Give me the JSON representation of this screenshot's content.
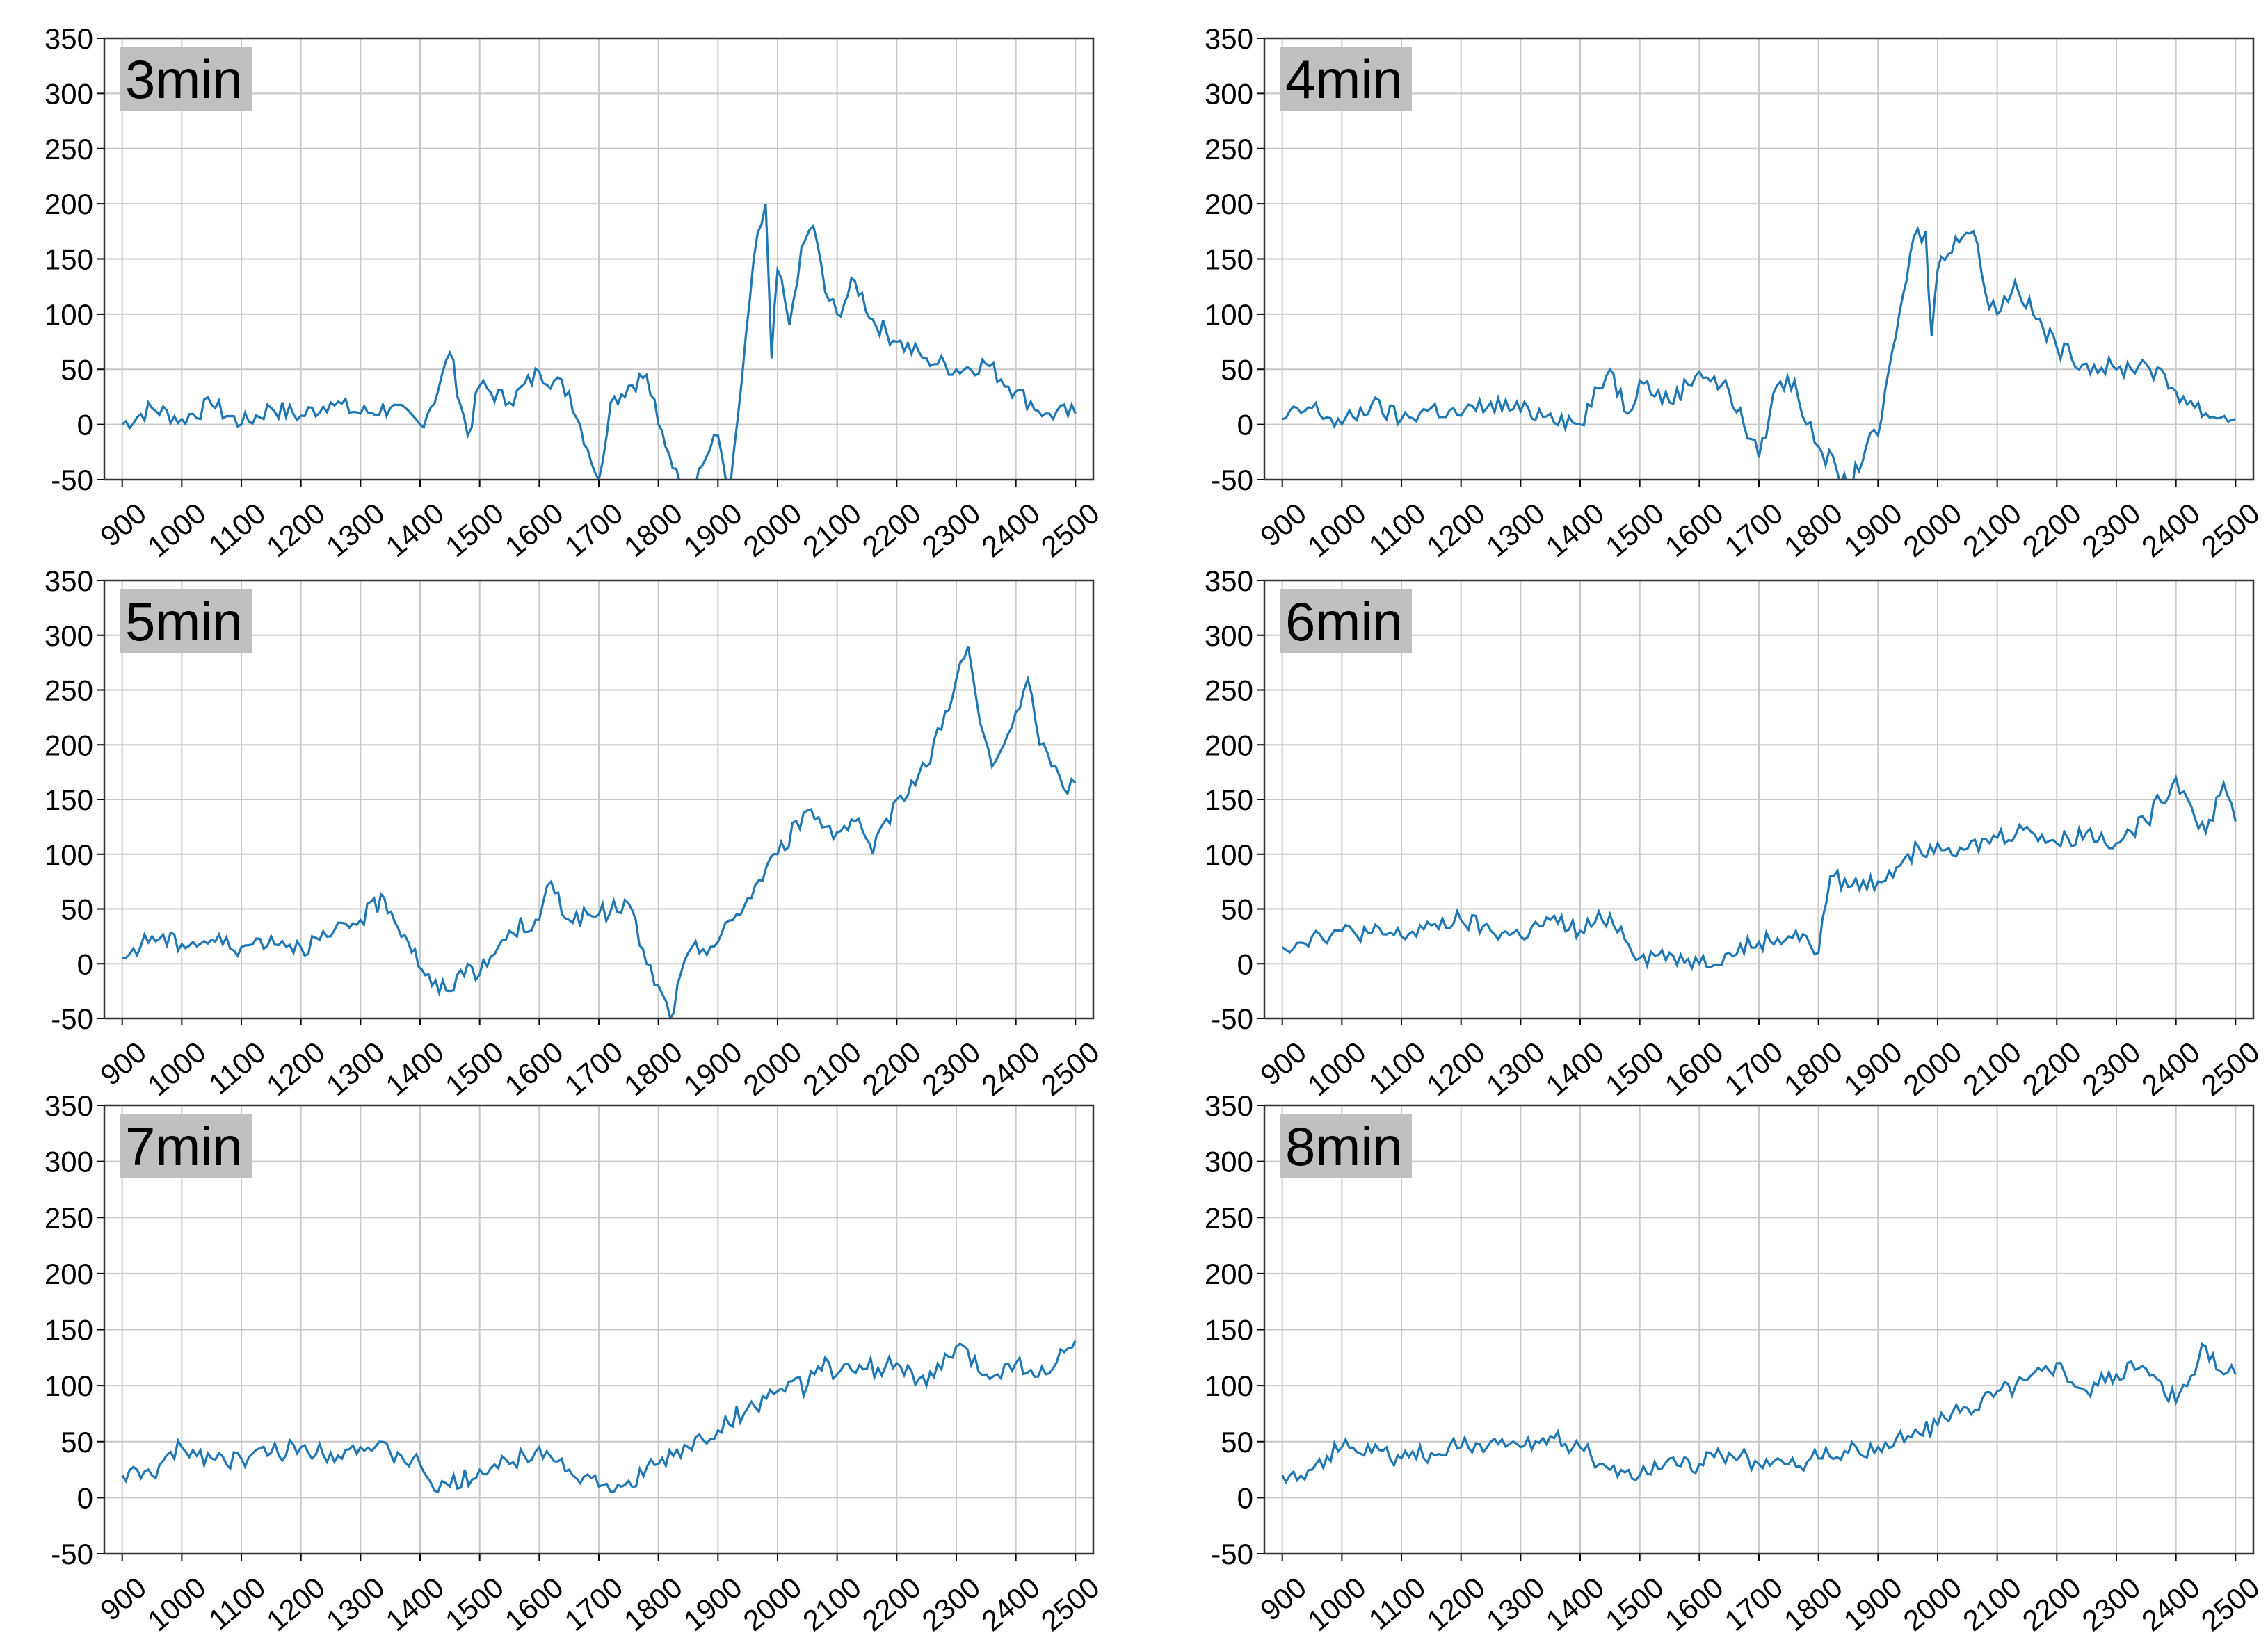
{
  "figure": {
    "line_color": "#1f77b4",
    "grid_color": "#c8c8c8",
    "label_box_color": "#c0c0c0",
    "frame_color": "#333333"
  },
  "chart_data": [
    {
      "type": "line",
      "title": "3min",
      "x_ticks": [
        "900",
        "1000",
        "1100",
        "1200",
        "1300",
        "1400",
        "1500",
        "1600",
        "1700",
        "1800",
        "1900",
        "2000",
        "2100",
        "2200",
        "2300",
        "2400",
        "2500"
      ],
      "y_ticks": [
        "350",
        "300",
        "250",
        "200",
        "150",
        "100",
        "50",
        "0",
        "-50"
      ],
      "xlim": [
        870,
        2530
      ],
      "ylim": [
        -50,
        350
      ],
      "grid": true,
      "series": [
        {
          "x": [
            900,
            950,
            1000,
            1050,
            1100,
            1150,
            1200,
            1250,
            1300,
            1350,
            1400,
            1430,
            1450,
            1480,
            1500,
            1550,
            1600,
            1650,
            1700,
            1720,
            1750,
            1780,
            1800,
            1830,
            1850,
            1880,
            1900,
            1920,
            1940,
            1960,
            1980,
            1990,
            2000,
            2020,
            2040,
            2060,
            2080,
            2100,
            2130,
            2160,
            2200,
            2250,
            2300,
            2350,
            2400,
            2450,
            2500
          ],
          "y": [
            0,
            15,
            5,
            18,
            0,
            15,
            8,
            20,
            10,
            15,
            0,
            30,
            65,
            -10,
            35,
            20,
            48,
            30,
            -50,
            20,
            35,
            45,
            0,
            -40,
            -60,
            -30,
            -10,
            -60,
            40,
            150,
            200,
            60,
            140,
            90,
            160,
            180,
            120,
            100,
            130,
            95,
            75,
            60,
            50,
            55,
            30,
            10,
            10
          ]
        }
      ]
    },
    {
      "type": "line",
      "title": "4min",
      "x_ticks": [
        "900",
        "1000",
        "1100",
        "1200",
        "1300",
        "1400",
        "1500",
        "1600",
        "1700",
        "1800",
        "1900",
        "2000",
        "2100",
        "2200",
        "2300",
        "2400",
        "2500"
      ],
      "y_ticks": [
        "350",
        "300",
        "250",
        "200",
        "150",
        "100",
        "50",
        "0",
        "-50"
      ],
      "xlim": [
        870,
        2530
      ],
      "ylim": [
        -50,
        350
      ],
      "grid": true,
      "series": [
        {
          "x": [
            900,
            950,
            1000,
            1050,
            1100,
            1150,
            1200,
            1250,
            1300,
            1350,
            1400,
            1450,
            1480,
            1500,
            1550,
            1600,
            1650,
            1700,
            1730,
            1760,
            1780,
            1800,
            1830,
            1850,
            1880,
            1900,
            1930,
            1960,
            1980,
            1990,
            2000,
            2030,
            2060,
            2080,
            2100,
            2130,
            2160,
            2200,
            2250,
            2300,
            2350,
            2400,
            2450,
            2500
          ],
          "y": [
            5,
            15,
            0,
            18,
            5,
            15,
            8,
            20,
            12,
            10,
            0,
            50,
            10,
            40,
            20,
            48,
            30,
            -30,
            35,
            40,
            0,
            -20,
            -40,
            -60,
            -20,
            -10,
            80,
            170,
            175,
            80,
            140,
            170,
            175,
            120,
            100,
            130,
            100,
            70,
            55,
            50,
            55,
            30,
            10,
            5
          ]
        }
      ]
    },
    {
      "type": "line",
      "title": "5min",
      "x_ticks": [
        "900",
        "1000",
        "1100",
        "1200",
        "1300",
        "1400",
        "1500",
        "1600",
        "1700",
        "1800",
        "1900",
        "2000",
        "2100",
        "2200",
        "2300",
        "2400",
        "2500"
      ],
      "y_ticks": [
        "350",
        "300",
        "250",
        "200",
        "150",
        "100",
        "50",
        "0",
        "-50"
      ],
      "xlim": [
        870,
        2530
      ],
      "ylim": [
        -50,
        350
      ],
      "grid": true,
      "series": [
        {
          "x": [
            900,
            950,
            1000,
            1050,
            1100,
            1150,
            1200,
            1250,
            1300,
            1340,
            1380,
            1420,
            1450,
            1480,
            1500,
            1550,
            1600,
            1620,
            1650,
            1700,
            1750,
            1780,
            1800,
            1820,
            1850,
            1900,
            1950,
            2000,
            2050,
            2100,
            2130,
            2160,
            2200,
            2250,
            2300,
            2320,
            2340,
            2360,
            2380,
            2400,
            2420,
            2440,
            2460,
            2480,
            2500
          ],
          "y": [
            5,
            25,
            18,
            22,
            15,
            25,
            15,
            25,
            40,
            60,
            20,
            -20,
            -25,
            0,
            -10,
            30,
            40,
            75,
            40,
            45,
            55,
            0,
            -20,
            -50,
            10,
            20,
            60,
            100,
            140,
            120,
            130,
            100,
            150,
            180,
            260,
            290,
            220,
            180,
            200,
            230,
            260,
            200,
            180,
            160,
            165
          ]
        }
      ]
    },
    {
      "type": "line",
      "title": "6min",
      "x_ticks": [
        "900",
        "1000",
        "1100",
        "1200",
        "1300",
        "1400",
        "1500",
        "1600",
        "1700",
        "1800",
        "1900",
        "2000",
        "2100",
        "2200",
        "2300",
        "2400",
        "2500"
      ],
      "y_ticks": [
        "350",
        "300",
        "250",
        "200",
        "150",
        "100",
        "50",
        "0",
        "-50"
      ],
      "xlim": [
        870,
        2530
      ],
      "ylim": [
        -50,
        350
      ],
      "grid": true,
      "series": [
        {
          "x": [
            900,
            950,
            1000,
            1050,
            1100,
            1150,
            1200,
            1250,
            1300,
            1350,
            1400,
            1450,
            1500,
            1550,
            1600,
            1650,
            1700,
            1750,
            1780,
            1800,
            1820,
            1850,
            1900,
            1950,
            2000,
            2050,
            2100,
            2150,
            2200,
            2250,
            2300,
            2350,
            2400,
            2420,
            2450,
            2480,
            2500
          ],
          "y": [
            15,
            25,
            30,
            28,
            25,
            35,
            40,
            30,
            25,
            40,
            30,
            45,
            5,
            10,
            0,
            10,
            20,
            25,
            25,
            10,
            80,
            70,
            75,
            100,
            110,
            105,
            115,
            125,
            110,
            120,
            110,
            130,
            170,
            150,
            120,
            165,
            130
          ]
        }
      ]
    },
    {
      "type": "line",
      "title": "7min",
      "x_ticks": [
        "900",
        "1000",
        "1100",
        "1200",
        "1300",
        "1400",
        "1500",
        "1600",
        "1700",
        "1800",
        "1900",
        "2000",
        "2100",
        "2200",
        "2300",
        "2400",
        "2500"
      ],
      "y_ticks": [
        "350",
        "300",
        "250",
        "200",
        "150",
        "100",
        "50",
        "0",
        "-50"
      ],
      "xlim": [
        870,
        2530
      ],
      "ylim": [
        -50,
        350
      ],
      "grid": true,
      "series": [
        {
          "x": [
            900,
            950,
            1000,
            1050,
            1100,
            1150,
            1200,
            1250,
            1300,
            1350,
            1400,
            1430,
            1450,
            1500,
            1550,
            1600,
            1650,
            1700,
            1720,
            1750,
            1800,
            1850,
            1900,
            1950,
            2000,
            2050,
            2080,
            2100,
            2150,
            2200,
            2250,
            2300,
            2350,
            2400,
            2450,
            2500
          ],
          "y": [
            20,
            20,
            45,
            35,
            35,
            40,
            45,
            40,
            45,
            40,
            30,
            5,
            10,
            25,
            30,
            45,
            25,
            10,
            5,
            15,
            30,
            45,
            60,
            80,
            95,
            100,
            125,
            110,
            115,
            120,
            100,
            135,
            110,
            120,
            110,
            140
          ]
        }
      ]
    },
    {
      "type": "line",
      "title": "8min",
      "x_ticks": [
        "900",
        "1000",
        "1100",
        "1200",
        "1300",
        "1400",
        "1500",
        "1600",
        "1700",
        "1800",
        "1900",
        "2000",
        "2100",
        "2200",
        "2300",
        "2400",
        "2500"
      ],
      "y_ticks": [
        "350",
        "300",
        "250",
        "200",
        "150",
        "100",
        "50",
        "0",
        "-50"
      ],
      "xlim": [
        870,
        2530
      ],
      "ylim": [
        -50,
        350
      ],
      "grid": true,
      "series": [
        {
          "x": [
            900,
            950,
            1000,
            1050,
            1100,
            1150,
            1200,
            1250,
            1300,
            1350,
            1400,
            1450,
            1500,
            1550,
            1600,
            1650,
            1700,
            1750,
            1800,
            1850,
            1900,
            1950,
            2000,
            2050,
            2100,
            2150,
            2200,
            2250,
            2300,
            2350,
            2400,
            2450,
            2480,
            2500
          ],
          "y": [
            20,
            25,
            45,
            40,
            35,
            40,
            45,
            50,
            45,
            55,
            45,
            25,
            20,
            35,
            30,
            40,
            30,
            30,
            35,
            40,
            45,
            55,
            65,
            80,
            95,
            105,
            120,
            95,
            110,
            115,
            85,
            135,
            110,
            110
          ]
        }
      ]
    }
  ]
}
